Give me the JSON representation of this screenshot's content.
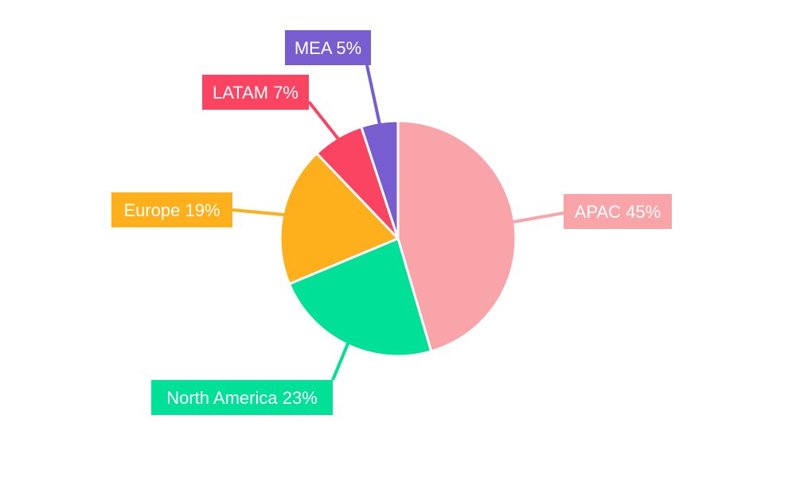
{
  "chart_data": {
    "type": "pie",
    "title": "",
    "categories": [
      "APAC",
      "North America",
      "Europe",
      "LATAM",
      "MEA"
    ],
    "values": [
      45,
      23,
      19,
      7,
      5
    ],
    "unit": "%",
    "colors": [
      "#f8a4a8",
      "#00e096",
      "#fdb01b",
      "#fb4461",
      "#775dd0"
    ],
    "labels": [
      "APAC 45%",
      "North America 23%",
      "Europe 19%",
      "LATAM 7%",
      "MEA 5%"
    ],
    "start_angle_deg": 0,
    "direction": "clockwise",
    "legend": "none",
    "label_style": "outside callout boxes with leader lines"
  }
}
